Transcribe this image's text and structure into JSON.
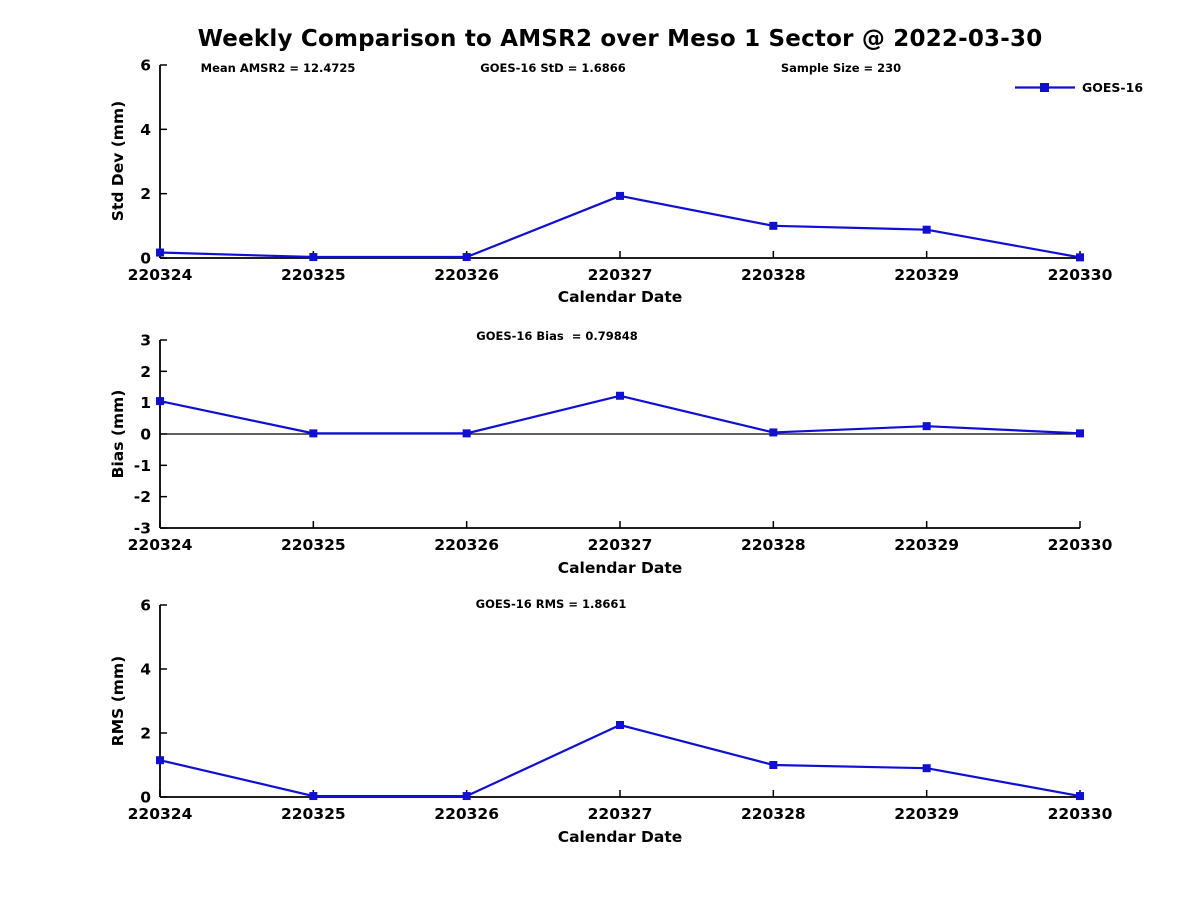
{
  "header": {
    "title": "Weekly Comparison to AMSR2 over Meso 1 Sector @ 2022-03-30"
  },
  "style": {
    "line_color": "#0f0fd8",
    "axis_color": "#000000",
    "background": "#ffffff"
  },
  "chart_data": [
    {
      "type": "line",
      "categories": [
        "220324",
        "220325",
        "220326",
        "220327",
        "220328",
        "220329",
        "220330"
      ],
      "series": [
        {
          "name": "GOES-16",
          "values": [
            0.17,
            0.03,
            0.03,
            1.93,
            1.0,
            0.88,
            0.02
          ]
        }
      ],
      "xlabel": "Calendar Date",
      "ylabel": "Std Dev (mm)",
      "ylim": [
        0,
        6
      ],
      "yticks": [
        0,
        2,
        4,
        6
      ],
      "zero_line": false,
      "grid": false,
      "legend_position": "upper-right-outside",
      "annotations": [
        "Mean AMSR2 = 12.4725",
        "GOES-16 StD = 1.6866",
        "Sample Size = 230"
      ]
    },
    {
      "type": "line",
      "subtitle": "GOES-16 Bias  = 0.79848",
      "categories": [
        "220324",
        "220325",
        "220326",
        "220327",
        "220328",
        "220329",
        "220330"
      ],
      "series": [
        {
          "name": "GOES-16",
          "values": [
            1.05,
            0.02,
            0.02,
            1.22,
            0.05,
            0.25,
            0.02
          ]
        }
      ],
      "xlabel": "Calendar Date",
      "ylabel": "Bias (mm)",
      "ylim": [
        -3,
        3
      ],
      "yticks": [
        -3,
        -2,
        -1,
        0,
        1,
        2,
        3
      ],
      "zero_line": true,
      "grid": false
    },
    {
      "type": "line",
      "subtitle": "GOES-16 RMS = 1.8661",
      "categories": [
        "220324",
        "220325",
        "220326",
        "220327",
        "220328",
        "220329",
        "220330"
      ],
      "series": [
        {
          "name": "GOES-16",
          "values": [
            1.15,
            0.03,
            0.03,
            2.25,
            1.0,
            0.9,
            0.03
          ]
        }
      ],
      "xlabel": "Calendar Date",
      "ylabel": "RMS (mm)",
      "ylim": [
        0,
        6
      ],
      "yticks": [
        0,
        2,
        4,
        6
      ],
      "zero_line": false,
      "grid": false
    }
  ]
}
